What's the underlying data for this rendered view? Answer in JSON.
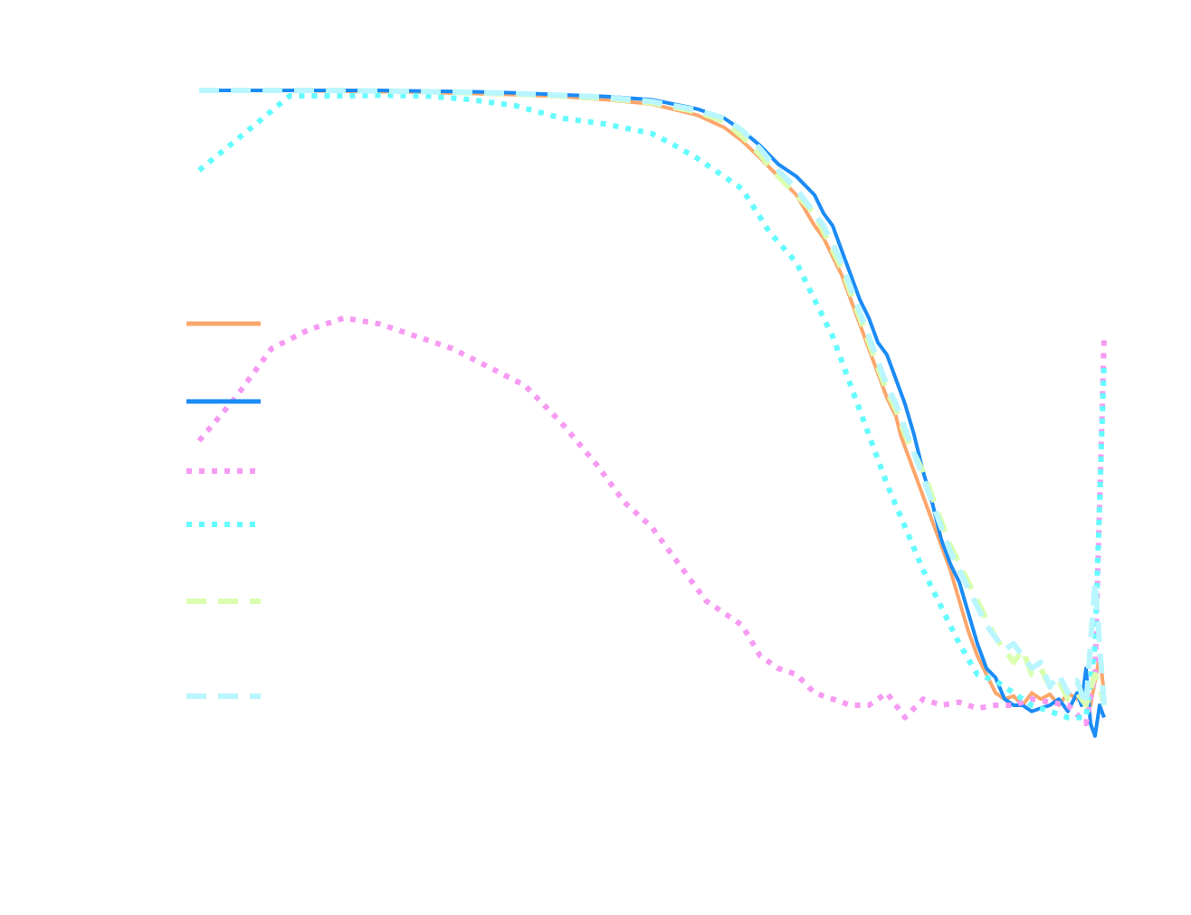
{
  "chart_data": {
    "type": "line",
    "title": "",
    "xlabel": "",
    "ylabel": "",
    "xlim": [
      0,
      1
    ],
    "ylim": [
      0,
      1
    ],
    "grid": false,
    "legend_placement": "center-left",
    "series": [
      {
        "color": "#FCA66C",
        "style": "solid",
        "x": [
          0.0,
          0.03,
          0.06,
          0.1,
          0.15,
          0.2,
          0.25,
          0.3,
          0.35,
          0.4,
          0.45,
          0.5,
          0.55,
          0.58,
          0.6,
          0.62,
          0.64,
          0.66,
          0.68,
          0.69,
          0.7,
          0.71,
          0.72,
          0.73,
          0.74,
          0.75,
          0.76,
          0.77,
          0.775,
          0.78,
          0.79,
          0.8,
          0.81,
          0.82,
          0.83,
          0.84,
          0.85,
          0.86,
          0.87,
          0.88,
          0.89,
          0.9,
          0.91,
          0.92,
          0.93,
          0.94,
          0.95,
          0.96,
          0.97,
          0.98,
          0.985,
          0.99,
          0.995,
          1.0
        ],
        "y": [
          1.0,
          1.0,
          1.0,
          1.0,
          0.999,
          0.998,
          0.997,
          0.995,
          0.993,
          0.99,
          0.985,
          0.978,
          0.96,
          0.94,
          0.918,
          0.89,
          0.86,
          0.83,
          0.78,
          0.76,
          0.73,
          0.7,
          0.66,
          0.62,
          0.58,
          0.54,
          0.5,
          0.47,
          0.44,
          0.42,
          0.38,
          0.34,
          0.3,
          0.26,
          0.22,
          0.17,
          0.12,
          0.08,
          0.05,
          0.02,
          0.01,
          0.015,
          0.0,
          0.02,
          0.01,
          0.018,
          0.0,
          0.02,
          0.01,
          0.03,
          0.0,
          0.04,
          0.08,
          0.02
        ]
      },
      {
        "color": "#1B8BF5",
        "style": "solid",
        "x": [
          0.0,
          0.03,
          0.06,
          0.1,
          0.15,
          0.2,
          0.25,
          0.3,
          0.35,
          0.4,
          0.45,
          0.5,
          0.55,
          0.58,
          0.6,
          0.62,
          0.64,
          0.66,
          0.68,
          0.69,
          0.7,
          0.71,
          0.72,
          0.73,
          0.74,
          0.75,
          0.76,
          0.77,
          0.78,
          0.79,
          0.8,
          0.81,
          0.82,
          0.83,
          0.84,
          0.85,
          0.86,
          0.87,
          0.88,
          0.89,
          0.9,
          0.91,
          0.92,
          0.93,
          0.94,
          0.95,
          0.96,
          0.97,
          0.975,
          0.98,
          0.985,
          0.99,
          0.995,
          1.0
        ],
        "y": [
          1.0,
          1.0,
          1.0,
          1.0,
          1.0,
          1.0,
          0.999,
          0.998,
          0.996,
          0.993,
          0.99,
          0.985,
          0.97,
          0.955,
          0.935,
          0.91,
          0.88,
          0.86,
          0.83,
          0.8,
          0.78,
          0.74,
          0.7,
          0.66,
          0.63,
          0.59,
          0.57,
          0.53,
          0.49,
          0.44,
          0.38,
          0.33,
          0.27,
          0.23,
          0.2,
          0.15,
          0.1,
          0.06,
          0.045,
          0.01,
          0.0,
          0.0,
          -0.01,
          -0.005,
          0.0,
          0.01,
          -0.01,
          0.02,
          0.0,
          0.06,
          -0.03,
          -0.05,
          0.0,
          -0.02
        ]
      },
      {
        "color": "#F79AF3",
        "style": "dotted",
        "x": [
          0.0,
          0.04,
          0.08,
          0.12,
          0.16,
          0.2,
          0.24,
          0.28,
          0.32,
          0.36,
          0.4,
          0.44,
          0.47,
          0.5,
          0.53,
          0.56,
          0.58,
          0.6,
          0.62,
          0.64,
          0.66,
          0.68,
          0.7,
          0.72,
          0.74,
          0.76,
          0.78,
          0.8,
          0.82,
          0.84,
          0.86,
          0.88,
          0.9,
          0.92,
          0.94,
          0.96,
          0.98,
          0.99,
          1.0
        ],
        "y": [
          0.43,
          0.5,
          0.58,
          0.61,
          0.63,
          0.62,
          0.6,
          0.58,
          0.55,
          0.52,
          0.46,
          0.39,
          0.33,
          0.29,
          0.23,
          0.17,
          0.15,
          0.13,
          0.08,
          0.06,
          0.05,
          0.02,
          0.01,
          0.0,
          0.0,
          0.02,
          -0.02,
          0.01,
          0.0,
          0.005,
          -0.005,
          0.0,
          0.0,
          0.01,
          0.005,
          0.0,
          -0.03,
          0.05,
          0.6
        ]
      },
      {
        "color": "#64FCFF",
        "style": "dotted",
        "x": [
          0.0,
          0.05,
          0.1,
          0.15,
          0.2,
          0.25,
          0.3,
          0.35,
          0.4,
          0.45,
          0.5,
          0.52,
          0.55,
          0.58,
          0.6,
          0.63,
          0.66,
          0.68,
          0.7,
          0.72,
          0.74,
          0.76,
          0.78,
          0.8,
          0.82,
          0.84,
          0.86,
          0.88,
          0.9,
          0.92,
          0.94,
          0.96,
          0.98,
          0.99,
          1.0
        ],
        "y": [
          0.87,
          0.93,
          0.991,
          0.991,
          0.992,
          0.991,
          0.985,
          0.975,
          0.955,
          0.945,
          0.93,
          0.915,
          0.89,
          0.86,
          0.84,
          0.77,
          0.72,
          0.66,
          0.6,
          0.52,
          0.44,
          0.36,
          0.29,
          0.22,
          0.16,
          0.1,
          0.05,
          0.04,
          0.02,
          0.0,
          -0.01,
          -0.02,
          -0.02,
          0.1,
          0.56
        ]
      },
      {
        "color": "#D9FFAF",
        "style": "dashed",
        "x": [
          0.0,
          0.03,
          0.06,
          0.1,
          0.15,
          0.2,
          0.25,
          0.3,
          0.35,
          0.4,
          0.45,
          0.5,
          0.55,
          0.58,
          0.6,
          0.62,
          0.64,
          0.66,
          0.68,
          0.69,
          0.7,
          0.71,
          0.72,
          0.73,
          0.74,
          0.75,
          0.76,
          0.77,
          0.78,
          0.79,
          0.8,
          0.81,
          0.82,
          0.83,
          0.84,
          0.85,
          0.86,
          0.87,
          0.88,
          0.89,
          0.9,
          0.91,
          0.92,
          0.93,
          0.94,
          0.95,
          0.96,
          0.97,
          0.98,
          0.99,
          0.995,
          1.0
        ],
        "y": [
          1.0,
          1.0,
          1.0,
          1.0,
          1.0,
          0.999,
          0.998,
          0.996,
          0.994,
          0.991,
          0.987,
          0.98,
          0.965,
          0.95,
          0.925,
          0.895,
          0.86,
          0.83,
          0.8,
          0.77,
          0.74,
          0.71,
          0.67,
          0.63,
          0.59,
          0.55,
          0.51,
          0.48,
          0.44,
          0.41,
          0.38,
          0.34,
          0.3,
          0.26,
          0.23,
          0.2,
          0.17,
          0.14,
          0.11,
          0.09,
          0.07,
          0.09,
          0.05,
          0.06,
          0.03,
          0.04,
          0.01,
          0.02,
          0.0,
          0.05,
          0.03,
          0.0
        ]
      },
      {
        "color": "#B9F6FF",
        "style": "dashed",
        "x": [
          0.0,
          0.03,
          0.06,
          0.1,
          0.15,
          0.2,
          0.25,
          0.3,
          0.35,
          0.4,
          0.45,
          0.5,
          0.55,
          0.58,
          0.6,
          0.62,
          0.64,
          0.66,
          0.68,
          0.69,
          0.7,
          0.71,
          0.72,
          0.73,
          0.74,
          0.75,
          0.76,
          0.77,
          0.78,
          0.79,
          0.8,
          0.81,
          0.82,
          0.83,
          0.84,
          0.85,
          0.86,
          0.87,
          0.88,
          0.89,
          0.9,
          0.91,
          0.92,
          0.93,
          0.94,
          0.95,
          0.96,
          0.97,
          0.98,
          0.99,
          0.995,
          1.0
        ],
        "y": [
          1.0,
          1.0,
          1.0,
          1.0,
          1.0,
          0.999,
          0.998,
          0.997,
          0.995,
          0.992,
          0.989,
          0.982,
          0.968,
          0.955,
          0.935,
          0.905,
          0.87,
          0.84,
          0.8,
          0.78,
          0.75,
          0.72,
          0.68,
          0.64,
          0.6,
          0.56,
          0.52,
          0.49,
          0.45,
          0.41,
          0.37,
          0.33,
          0.29,
          0.25,
          0.22,
          0.19,
          0.16,
          0.13,
          0.11,
          0.09,
          0.1,
          0.08,
          0.06,
          0.07,
          0.03,
          0.05,
          0.02,
          0.04,
          0.0,
          0.2,
          0.1,
          0.0
        ]
      }
    ]
  }
}
